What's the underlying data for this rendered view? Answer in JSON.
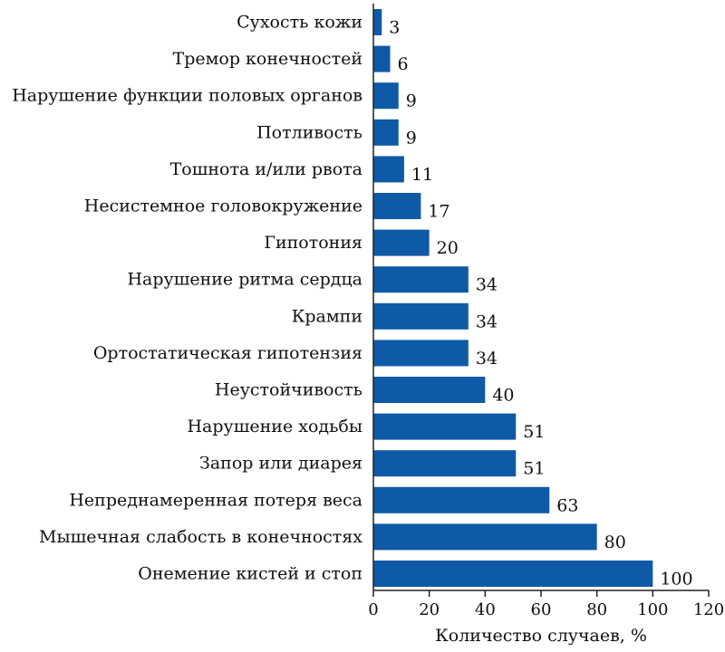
{
  "chart_data": {
    "type": "bar",
    "orientation": "horizontal",
    "categories": [
      "Сухость кожи",
      "Тремор конечностей",
      "Нарушение функции половых органов",
      "Потливость",
      "Тошнота и/или рвота",
      "Несистемное головокружение",
      "Гипотония",
      "Нарушение ритма сердца",
      "Крампи",
      "Ортостатическая гипотензия",
      "Неустойчивость",
      "Нарушение ходьбы",
      "Запор или диарея",
      "Непреднамеренная потеря веса",
      "Мышечная слабость в конечностях",
      "Онемение кистей и стоп"
    ],
    "values": [
      3,
      6,
      9,
      9,
      11,
      17,
      20,
      34,
      34,
      34,
      40,
      51,
      51,
      63,
      80,
      100
    ],
    "value_labels": [
      "3",
      "6",
      "9",
      "9",
      "11",
      "17",
      "20",
      "34",
      "34",
      "34",
      "40",
      "51",
      "51",
      "63",
      "80",
      "100"
    ],
    "xlabel": "Количество случаев, %",
    "xlim": [
      0,
      120
    ],
    "xticks": [
      0,
      20,
      40,
      60,
      80,
      100,
      120
    ],
    "xtick_labels": [
      "0",
      "20",
      "40",
      "60",
      "80",
      "100",
      "120"
    ],
    "bar_color": "#0e5aa7",
    "grid": false,
    "legend": "none"
  }
}
